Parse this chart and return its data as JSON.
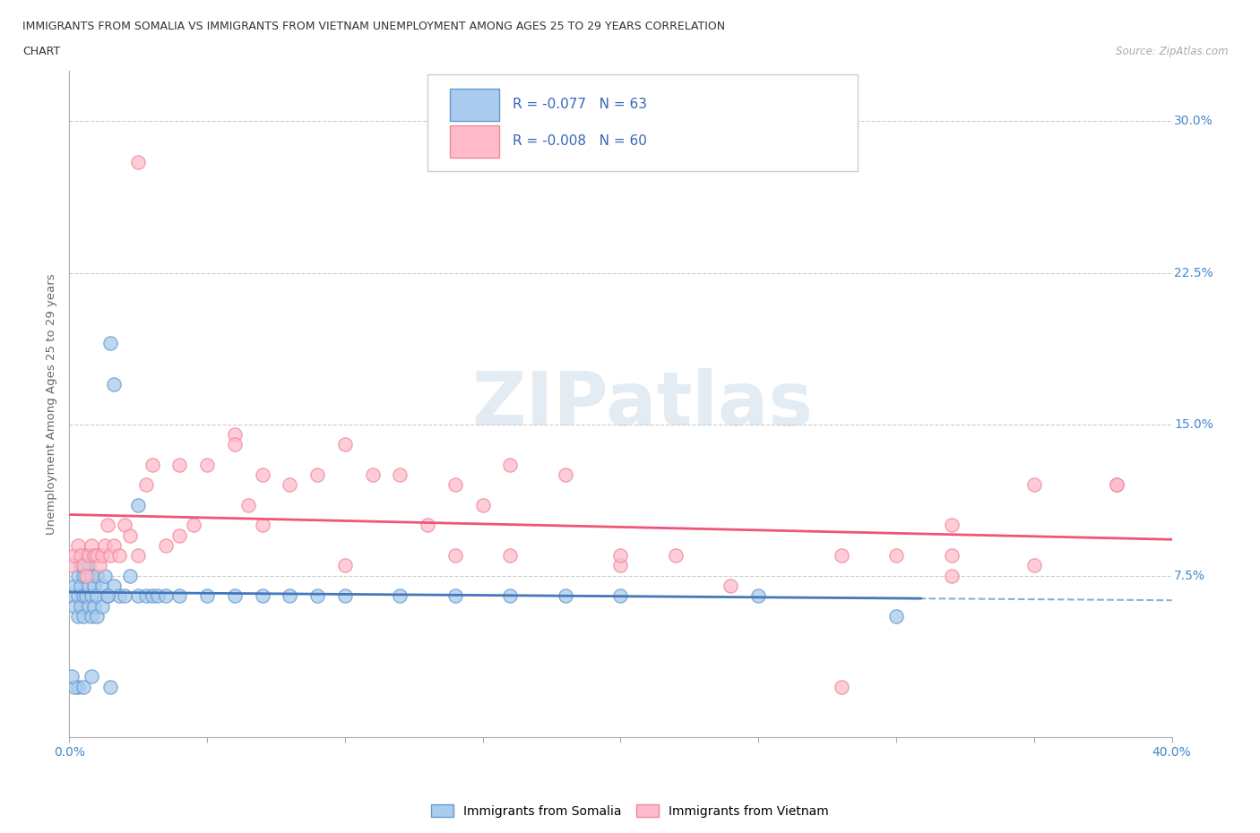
{
  "title_line1": "IMMIGRANTS FROM SOMALIA VS IMMIGRANTS FROM VIETNAM UNEMPLOYMENT AMONG AGES 25 TO 29 YEARS CORRELATION",
  "title_line2": "CHART",
  "source_text": "Source: ZipAtlas.com",
  "ylabel": "Unemployment Among Ages 25 to 29 years",
  "xlim": [
    0,
    0.4
  ],
  "ylim": [
    -0.005,
    0.325
  ],
  "xticks": [
    0.0,
    0.05,
    0.1,
    0.15,
    0.2,
    0.25,
    0.3,
    0.35,
    0.4
  ],
  "xticklabels": [
    "0.0%",
    "",
    "",
    "",
    "",
    "",
    "",
    "",
    "40.0%"
  ],
  "yticks": [
    0.0,
    0.075,
    0.15,
    0.225,
    0.3
  ],
  "yticklabels_right": [
    "",
    "7.5%",
    "15.0%",
    "22.5%",
    "30.0%"
  ],
  "somalia_color": "#aaccee",
  "somalia_edge": "#6699cc",
  "vietnam_color": "#ffbbcc",
  "vietnam_edge": "#ee8899",
  "somalia_line_color": "#4477bb",
  "vietnam_line_color": "#ee5577",
  "watermark": "ZIPatlas",
  "bottom_legend_somalia": "Immigrants from Somalia",
  "bottom_legend_vietnam": "Immigrants from Vietnam",
  "somalia_x": [
    0.001,
    0.002,
    0.002,
    0.003,
    0.003,
    0.003,
    0.004,
    0.004,
    0.004,
    0.005,
    0.005,
    0.005,
    0.006,
    0.006,
    0.006,
    0.007,
    0.007,
    0.007,
    0.008,
    0.008,
    0.008,
    0.009,
    0.009,
    0.01,
    0.01,
    0.01,
    0.012,
    0.012,
    0.013,
    0.014,
    0.015,
    0.016,
    0.016,
    0.018,
    0.02,
    0.022,
    0.025,
    0.025,
    0.028,
    0.03,
    0.032,
    0.035,
    0.04,
    0.05,
    0.06,
    0.07,
    0.08,
    0.09,
    0.1,
    0.12,
    0.14,
    0.16,
    0.18,
    0.2,
    0.25,
    0.3,
    0.014,
    0.003,
    0.002,
    0.001,
    0.005,
    0.008,
    0.015
  ],
  "somalia_y": [
    0.065,
    0.07,
    0.06,
    0.075,
    0.065,
    0.055,
    0.08,
    0.07,
    0.06,
    0.075,
    0.065,
    0.055,
    0.085,
    0.075,
    0.065,
    0.08,
    0.07,
    0.06,
    0.075,
    0.065,
    0.055,
    0.07,
    0.06,
    0.075,
    0.065,
    0.055,
    0.07,
    0.06,
    0.075,
    0.065,
    0.19,
    0.17,
    0.07,
    0.065,
    0.065,
    0.075,
    0.11,
    0.065,
    0.065,
    0.065,
    0.065,
    0.065,
    0.065,
    0.065,
    0.065,
    0.065,
    0.065,
    0.065,
    0.065,
    0.065,
    0.065,
    0.065,
    0.065,
    0.065,
    0.065,
    0.055,
    0.065,
    0.02,
    0.02,
    0.025,
    0.02,
    0.025,
    0.02
  ],
  "vietnam_x": [
    0.001,
    0.002,
    0.003,
    0.004,
    0.005,
    0.006,
    0.007,
    0.008,
    0.009,
    0.01,
    0.011,
    0.012,
    0.013,
    0.014,
    0.015,
    0.016,
    0.018,
    0.02,
    0.022,
    0.025,
    0.028,
    0.03,
    0.035,
    0.04,
    0.045,
    0.05,
    0.06,
    0.065,
    0.07,
    0.08,
    0.09,
    0.1,
    0.11,
    0.12,
    0.13,
    0.14,
    0.15,
    0.16,
    0.18,
    0.2,
    0.22,
    0.24,
    0.28,
    0.3,
    0.32,
    0.35,
    0.38,
    0.025,
    0.04,
    0.07,
    0.14,
    0.2,
    0.28,
    0.32,
    0.38,
    0.06,
    0.1,
    0.16,
    0.32,
    0.35
  ],
  "vietnam_y": [
    0.08,
    0.085,
    0.09,
    0.085,
    0.08,
    0.075,
    0.085,
    0.09,
    0.085,
    0.085,
    0.08,
    0.085,
    0.09,
    0.1,
    0.085,
    0.09,
    0.085,
    0.1,
    0.095,
    0.28,
    0.12,
    0.13,
    0.09,
    0.13,
    0.1,
    0.13,
    0.145,
    0.11,
    0.125,
    0.12,
    0.125,
    0.14,
    0.125,
    0.125,
    0.1,
    0.12,
    0.11,
    0.13,
    0.125,
    0.08,
    0.085,
    0.07,
    0.085,
    0.085,
    0.1,
    0.08,
    0.12,
    0.085,
    0.095,
    0.1,
    0.085,
    0.085,
    0.02,
    0.075,
    0.12,
    0.14,
    0.08,
    0.085,
    0.085,
    0.12
  ],
  "background_color": "#ffffff",
  "grid_color": "#cccccc"
}
